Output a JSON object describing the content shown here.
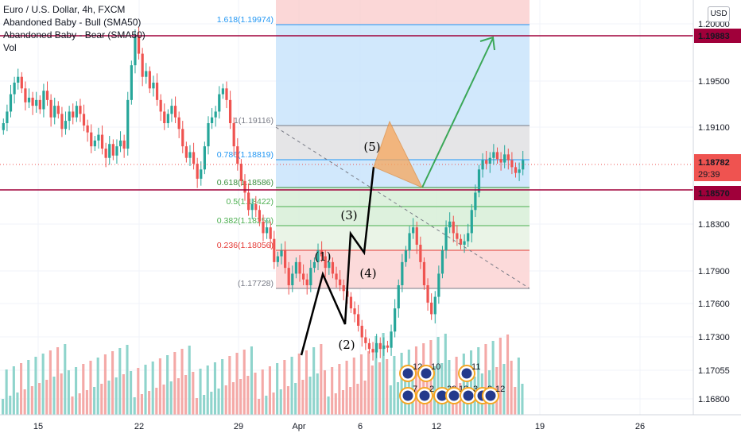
{
  "header": {
    "symbol": "Euro / U.S. Dollar, 4h, FXCM",
    "indicator_bull": "Abandoned Baby - Bull (SMA50)",
    "indicator_bear": "Abandoned Baby - Bear (SMA50)",
    "volume": "Vol"
  },
  "currency_badge": "USD",
  "colors": {
    "up": "#26a69a",
    "down": "#ef5350",
    "fib_blue": "#2196f3",
    "wave": "#000000",
    "arrow": "#3aa757",
    "triangle": "#f7a65a",
    "hline": "#a0003a",
    "current": "#ef5350"
  },
  "chart_data": {
    "type": "candlestick",
    "title": "Euro / U.S. Dollar, 4h, FXCM",
    "ylim": [
      1.1665,
      1.2015
    ],
    "y_ticks": [
      "1.20000",
      "1.19500",
      "1.19100",
      "1.18300",
      "1.17900",
      "1.17600",
      "1.17300",
      "1.17055",
      "1.16800"
    ],
    "x_ticks": [
      "15",
      "22",
      "29",
      "Apr",
      "6",
      "12",
      "19",
      "26"
    ],
    "closes": [
      1.191,
      1.192,
      1.1935,
      1.1945,
      1.195,
      1.194,
      1.1928,
      1.1932,
      1.1925,
      1.193,
      1.1922,
      1.1938,
      1.193,
      1.1915,
      1.1925,
      1.1918,
      1.1905,
      1.1912,
      1.192,
      1.1915,
      1.1925,
      1.1918,
      1.1908,
      1.1902,
      1.189,
      1.1895,
      1.19,
      1.1888,
      1.188,
      1.1892,
      1.1882,
      1.189,
      1.1895,
      1.1888,
      1.193,
      1.196,
      1.1985,
      1.197,
      1.195,
      1.1955,
      1.194,
      1.1945,
      1.193,
      1.192,
      1.191,
      1.1918,
      1.1925,
      1.1915,
      1.1905,
      1.189,
      1.188,
      1.1885,
      1.1875,
      1.1862,
      1.187,
      1.189,
      1.191,
      1.1915,
      1.192,
      1.1935,
      1.194,
      1.193,
      1.191,
      1.189,
      1.1875,
      1.186,
      1.185,
      1.1835,
      1.184,
      1.1835,
      1.1825,
      1.1815,
      1.182,
      1.181,
      1.179,
      1.1795,
      1.18,
      1.1785,
      1.177,
      1.178,
      1.179,
      1.178,
      1.1775,
      1.177,
      1.1785,
      1.179,
      1.18,
      1.1795,
      1.1785,
      1.179,
      1.178,
      1.1775,
      1.177,
      1.1765,
      1.176,
      1.175,
      1.1745,
      1.1735,
      1.1725,
      1.172,
      1.1715,
      1.1712,
      1.172,
      1.1715,
      1.1718,
      1.1716,
      1.173,
      1.175,
      1.177,
      1.179,
      1.18,
      1.1815,
      1.182,
      1.1805,
      1.179,
      1.177,
      1.1755,
      1.1745,
      1.176,
      1.178,
      1.18,
      1.182,
      1.1825,
      1.1815,
      1.181,
      1.1805,
      1.1808,
      1.1815,
      1.1835,
      1.185,
      1.187,
      1.1878,
      1.1875,
      1.188,
      1.1885,
      1.1879,
      1.1876,
      1.1883,
      1.1878,
      1.1872,
      1.1867,
      1.187,
      1.1878
    ],
    "fibonacci": [
      {
        "label": "1.618(1.19974)",
        "price": 1.19974
      },
      {
        "label": "1(1.19116)",
        "price": 1.19116
      },
      {
        "label": "0.786(1.18819)",
        "price": 1.18819
      },
      {
        "label": "0.618(1.18586)",
        "price": 1.18586
      },
      {
        "label": "0.5(1.18422)",
        "price": 1.18422
      },
      {
        "label": "0.382(1.18259)",
        "price": 1.18259
      },
      {
        "label": "0.236(1.18056)",
        "price": 1.18056
      },
      {
        "label": "(1.17728)",
        "price": 1.17728
      }
    ],
    "wave_labels": [
      "(1)",
      "(2)",
      "(3)",
      "(4)",
      "(5)"
    ],
    "horizontal_lines": [
      {
        "label": "1.19883",
        "price": 1.19883
      },
      {
        "label": "1.18570",
        "price": 1.1857
      }
    ],
    "current_price": {
      "label": "1.18782",
      "countdown": "29:39",
      "price": 1.18782
    },
    "events": [
      {
        "count": "12"
      },
      {
        "count": "10"
      },
      {
        "count": "11"
      },
      {
        "count": "7"
      },
      {
        "count": "2"
      },
      {
        "count": "20"
      },
      {
        "count": "12"
      },
      {
        "count": "3"
      },
      {
        "count": "8"
      },
      {
        "count": "12"
      }
    ]
  }
}
